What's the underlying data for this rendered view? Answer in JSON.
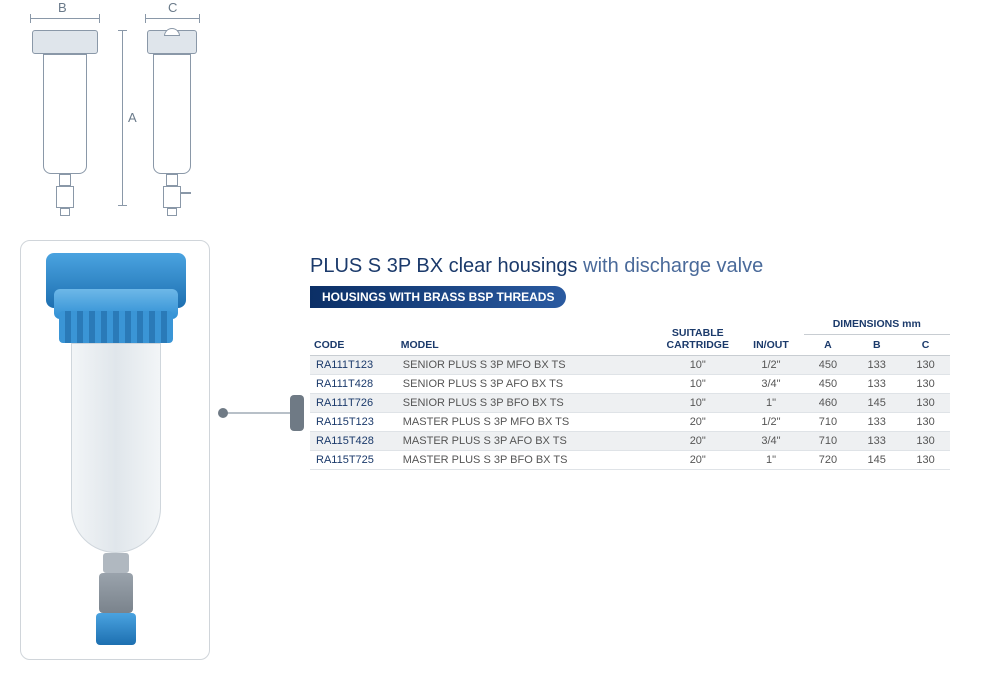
{
  "diagram": {
    "label_a": "A",
    "label_b": "B",
    "label_c": "C",
    "colors": {
      "line": "#8a98a8",
      "head": "#dfe5eb",
      "text": "#6a7a8a"
    }
  },
  "photo": {
    "cap_color": "#2f8fd4",
    "cap_dark": "#1d6fb0",
    "housing_color": "#e8edf1",
    "housing_border": "#cfd6dc",
    "valve_color": "#8a98a8",
    "valve_blue": "#2f8fd4"
  },
  "title": {
    "main": "PLUS S 3P BX clear housings",
    "suffix": " with discharge valve"
  },
  "subtitle": {
    "text": "HOUSINGS WITH BRASS BSP THREADS",
    "bg": "#0b2f66",
    "bg_gradient_end": "#2a5aa0"
  },
  "table": {
    "headers": {
      "code": "CODE",
      "model": "MODEL",
      "cartridge": "SUITABLE CARTRIDGE",
      "inout": "IN/OUT",
      "dimensions": "DIMENSIONS mm",
      "a": "A",
      "b": "B",
      "c": "C"
    },
    "col_widths": {
      "code": 80,
      "model": 240,
      "cartridge": 75,
      "inout": 60,
      "a": 45,
      "b": 45,
      "c": 45
    },
    "header_color": "#1b3a6b",
    "row_alt_bg": "#eef0f2",
    "rows": [
      {
        "code": "RA111T123",
        "model": "SENIOR PLUS S 3P MFO BX TS",
        "cartridge": "10\"",
        "inout": "1/2\"",
        "a": "450",
        "b": "133",
        "c": "130"
      },
      {
        "code": "RA111T428",
        "model": "SENIOR PLUS S 3P AFO BX TS",
        "cartridge": "10\"",
        "inout": "3/4\"",
        "a": "450",
        "b": "133",
        "c": "130"
      },
      {
        "code": "RA111T726",
        "model": "SENIOR PLUS S 3P BFO BX TS",
        "cartridge": "10\"",
        "inout": "1\"",
        "a": "460",
        "b": "145",
        "c": "130"
      },
      {
        "code": "RA115T123",
        "model": "MASTER PLUS S 3P MFO BX TS",
        "cartridge": "20\"",
        "inout": "1/2\"",
        "a": "710",
        "b": "133",
        "c": "130"
      },
      {
        "code": "RA115T428",
        "model": "MASTER PLUS S 3P AFO BX TS",
        "cartridge": "20\"",
        "inout": "3/4\"",
        "a": "710",
        "b": "133",
        "c": "130"
      },
      {
        "code": "RA115T725",
        "model": "MASTER PLUS S 3P BFO BX TS",
        "cartridge": "20\"",
        "inout": "1\"",
        "a": "720",
        "b": "145",
        "c": "130"
      }
    ]
  }
}
